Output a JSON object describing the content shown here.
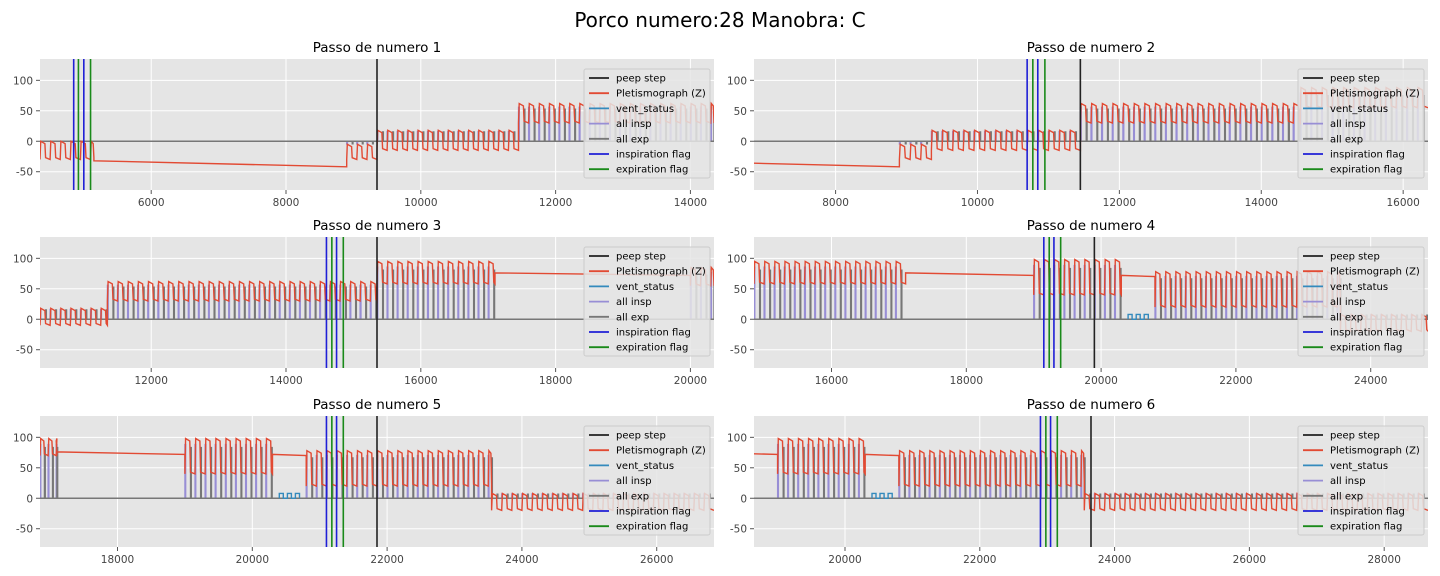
{
  "title": "Porco numero:28 Manobra: C",
  "colors": {
    "peep_step": "#222222",
    "pletismograph": "#e24a33",
    "vent_status": "#348abd",
    "all_insp": "#988ed5",
    "all_exp": "#777777",
    "inspiration_flag": "#1f1fd6",
    "expiration_flag": "#1a8a1a",
    "axes_bg": "#e5e5e5",
    "grid": "#ffffff"
  },
  "legend_labels": [
    "peep step",
    "Pletismograph (Z)",
    "vent_status",
    "all insp",
    "all exp",
    "inspiration flag",
    "expiration flag"
  ],
  "chart_data": [
    {
      "type": "line",
      "title": "Passo de numero 1",
      "xlim": [
        4350,
        14350
      ],
      "ylim": [
        -80,
        135
      ],
      "xticks": [
        6000,
        8000,
        10000,
        12000,
        14000
      ],
      "yticks": [
        100,
        50,
        0,
        -50
      ],
      "peep_step": 9350,
      "inspiration_flags": [
        4850,
        5000
      ],
      "expiration_flags": [
        4920,
        5100
      ],
      "segments": [
        {
          "x0": 4350,
          "x1": 5150,
          "kind": "breath",
          "top": 0,
          "bot": -30,
          "pstep": 150
        },
        {
          "x0": 5150,
          "x1": 8900,
          "kind": "flat",
          "y0": -32,
          "y1": -42
        },
        {
          "x0": 8900,
          "x1": 9350,
          "kind": "breath",
          "top": -5,
          "bot": -30,
          "pstep": 150
        },
        {
          "x0": 9350,
          "x1": 11450,
          "kind": "breath",
          "top": 18,
          "bot": -15,
          "pstep": 150
        },
        {
          "x0": 11450,
          "x1": 14350,
          "kind": "breath",
          "top": 62,
          "bot": 30,
          "pstep": 150
        }
      ],
      "vent": []
    },
    {
      "type": "line",
      "title": "Passo de numero 2",
      "xlim": [
        6850,
        16350
      ],
      "ylim": [
        -80,
        135
      ],
      "xticks": [
        8000,
        10000,
        12000,
        14000,
        16000
      ],
      "yticks": [
        100,
        50,
        0,
        -50
      ],
      "peep_step": 11450,
      "inspiration_flags": [
        10700,
        10850
      ],
      "expiration_flags": [
        10780,
        10950
      ],
      "segments": [
        {
          "x0": 6850,
          "x1": 8900,
          "kind": "flat",
          "y0": -36,
          "y1": -42
        },
        {
          "x0": 8900,
          "x1": 9350,
          "kind": "breath",
          "top": -5,
          "bot": -30,
          "pstep": 150
        },
        {
          "x0": 9350,
          "x1": 11450,
          "kind": "breath",
          "top": 18,
          "bot": -15,
          "pstep": 150
        },
        {
          "x0": 11450,
          "x1": 14550,
          "kind": "breath",
          "top": 62,
          "bot": 30,
          "pstep": 150
        },
        {
          "x0": 14550,
          "x1": 16350,
          "kind": "breath",
          "top": 88,
          "bot": 55,
          "pstep": 150
        }
      ],
      "vent": []
    },
    {
      "type": "line",
      "title": "Passo de numero 3",
      "xlim": [
        10350,
        20350
      ],
      "ylim": [
        -80,
        135
      ],
      "xticks": [
        12000,
        14000,
        16000,
        18000,
        20000
      ],
      "yticks": [
        100,
        50,
        0,
        -50
      ],
      "peep_step": 15350,
      "inspiration_flags": [
        14600,
        14750
      ],
      "expiration_flags": [
        14680,
        14850
      ],
      "segments": [
        {
          "x0": 10350,
          "x1": 11350,
          "kind": "breath",
          "top": 18,
          "bot": -10,
          "pstep": 150
        },
        {
          "x0": 11350,
          "x1": 15350,
          "kind": "breath",
          "top": 62,
          "bot": 30,
          "pstep": 150
        },
        {
          "x0": 15350,
          "x1": 17100,
          "kind": "breath",
          "top": 95,
          "bot": 58,
          "pstep": 150
        },
        {
          "x0": 17100,
          "x1": 20000,
          "kind": "flat",
          "y0": 76,
          "y1": 72
        },
        {
          "x0": 20000,
          "x1": 20350,
          "kind": "breath",
          "top": 85,
          "bot": 55,
          "pstep": 150
        }
      ],
      "vent": []
    },
    {
      "type": "line",
      "title": "Passo de numero 4",
      "xlim": [
        14850,
        24850
      ],
      "ylim": [
        -80,
        135
      ],
      "xticks": [
        16000,
        18000,
        20000,
        22000,
        24000
      ],
      "yticks": [
        100,
        50,
        0,
        -50
      ],
      "peep_step": 19900,
      "inspiration_flags": [
        19150,
        19300
      ],
      "expiration_flags": [
        19230,
        19400
      ],
      "segments": [
        {
          "x0": 14850,
          "x1": 17100,
          "kind": "breath",
          "top": 95,
          "bot": 58,
          "pstep": 150
        },
        {
          "x0": 17100,
          "x1": 19000,
          "kind": "flat",
          "y0": 76,
          "y1": 72
        },
        {
          "x0": 19000,
          "x1": 20300,
          "kind": "breath",
          "top": 98,
          "bot": 40,
          "pstep": 150
        },
        {
          "x0": 20300,
          "x1": 20800,
          "kind": "flat",
          "y0": 72,
          "y1": 70
        },
        {
          "x0": 20800,
          "x1": 23550,
          "kind": "breath",
          "top": 78,
          "bot": 20,
          "pstep": 150
        },
        {
          "x0": 23550,
          "x1": 24850,
          "kind": "breath",
          "top": 8,
          "bot": -20,
          "pstep": 150
        }
      ],
      "vent": [
        [
          20400,
          20750
        ]
      ]
    },
    {
      "type": "line",
      "title": "Passo de numero 5",
      "xlim": [
        16850,
        26850
      ],
      "ylim": [
        -80,
        135
      ],
      "xticks": [
        18000,
        20000,
        22000,
        24000,
        26000
      ],
      "yticks": [
        100,
        50,
        0,
        -50
      ],
      "peep_step": 21850,
      "inspiration_flags": [
        21100,
        21250
      ],
      "expiration_flags": [
        21180,
        21350
      ],
      "segments": [
        {
          "x0": 16850,
          "x1": 17100,
          "kind": "breath",
          "top": 98,
          "bot": 70,
          "pstep": 120
        },
        {
          "x0": 17100,
          "x1": 19000,
          "kind": "flat",
          "y0": 76,
          "y1": 72
        },
        {
          "x0": 19000,
          "x1": 20300,
          "kind": "breath",
          "top": 98,
          "bot": 40,
          "pstep": 150
        },
        {
          "x0": 20300,
          "x1": 20800,
          "kind": "flat",
          "y0": 72,
          "y1": 70
        },
        {
          "x0": 20800,
          "x1": 23550,
          "kind": "breath",
          "top": 78,
          "bot": 20,
          "pstep": 150
        },
        {
          "x0": 23550,
          "x1": 26850,
          "kind": "breath",
          "top": 8,
          "bot": -20,
          "pstep": 150
        }
      ],
      "vent": [
        [
          20400,
          20750
        ]
      ]
    },
    {
      "type": "line",
      "title": "Passo de numero 6",
      "xlim": [
        18650,
        28650
      ],
      "ylim": [
        -80,
        135
      ],
      "xticks": [
        20000,
        22000,
        24000,
        26000,
        28000
      ],
      "yticks": [
        100,
        50,
        0,
        -50
      ],
      "peep_step": 23650,
      "inspiration_flags": [
        22900,
        23050
      ],
      "expiration_flags": [
        22980,
        23150
      ],
      "segments": [
        {
          "x0": 18650,
          "x1": 19000,
          "kind": "flat",
          "y0": 73,
          "y1": 72
        },
        {
          "x0": 19000,
          "x1": 20300,
          "kind": "breath",
          "top": 98,
          "bot": 40,
          "pstep": 150
        },
        {
          "x0": 20300,
          "x1": 20800,
          "kind": "flat",
          "y0": 72,
          "y1": 70
        },
        {
          "x0": 20800,
          "x1": 23550,
          "kind": "breath",
          "top": 78,
          "bot": 20,
          "pstep": 150
        },
        {
          "x0": 23550,
          "x1": 28650,
          "kind": "breath",
          "top": 8,
          "bot": -20,
          "pstep": 150
        }
      ],
      "vent": [
        [
          20400,
          20750
        ]
      ]
    }
  ]
}
